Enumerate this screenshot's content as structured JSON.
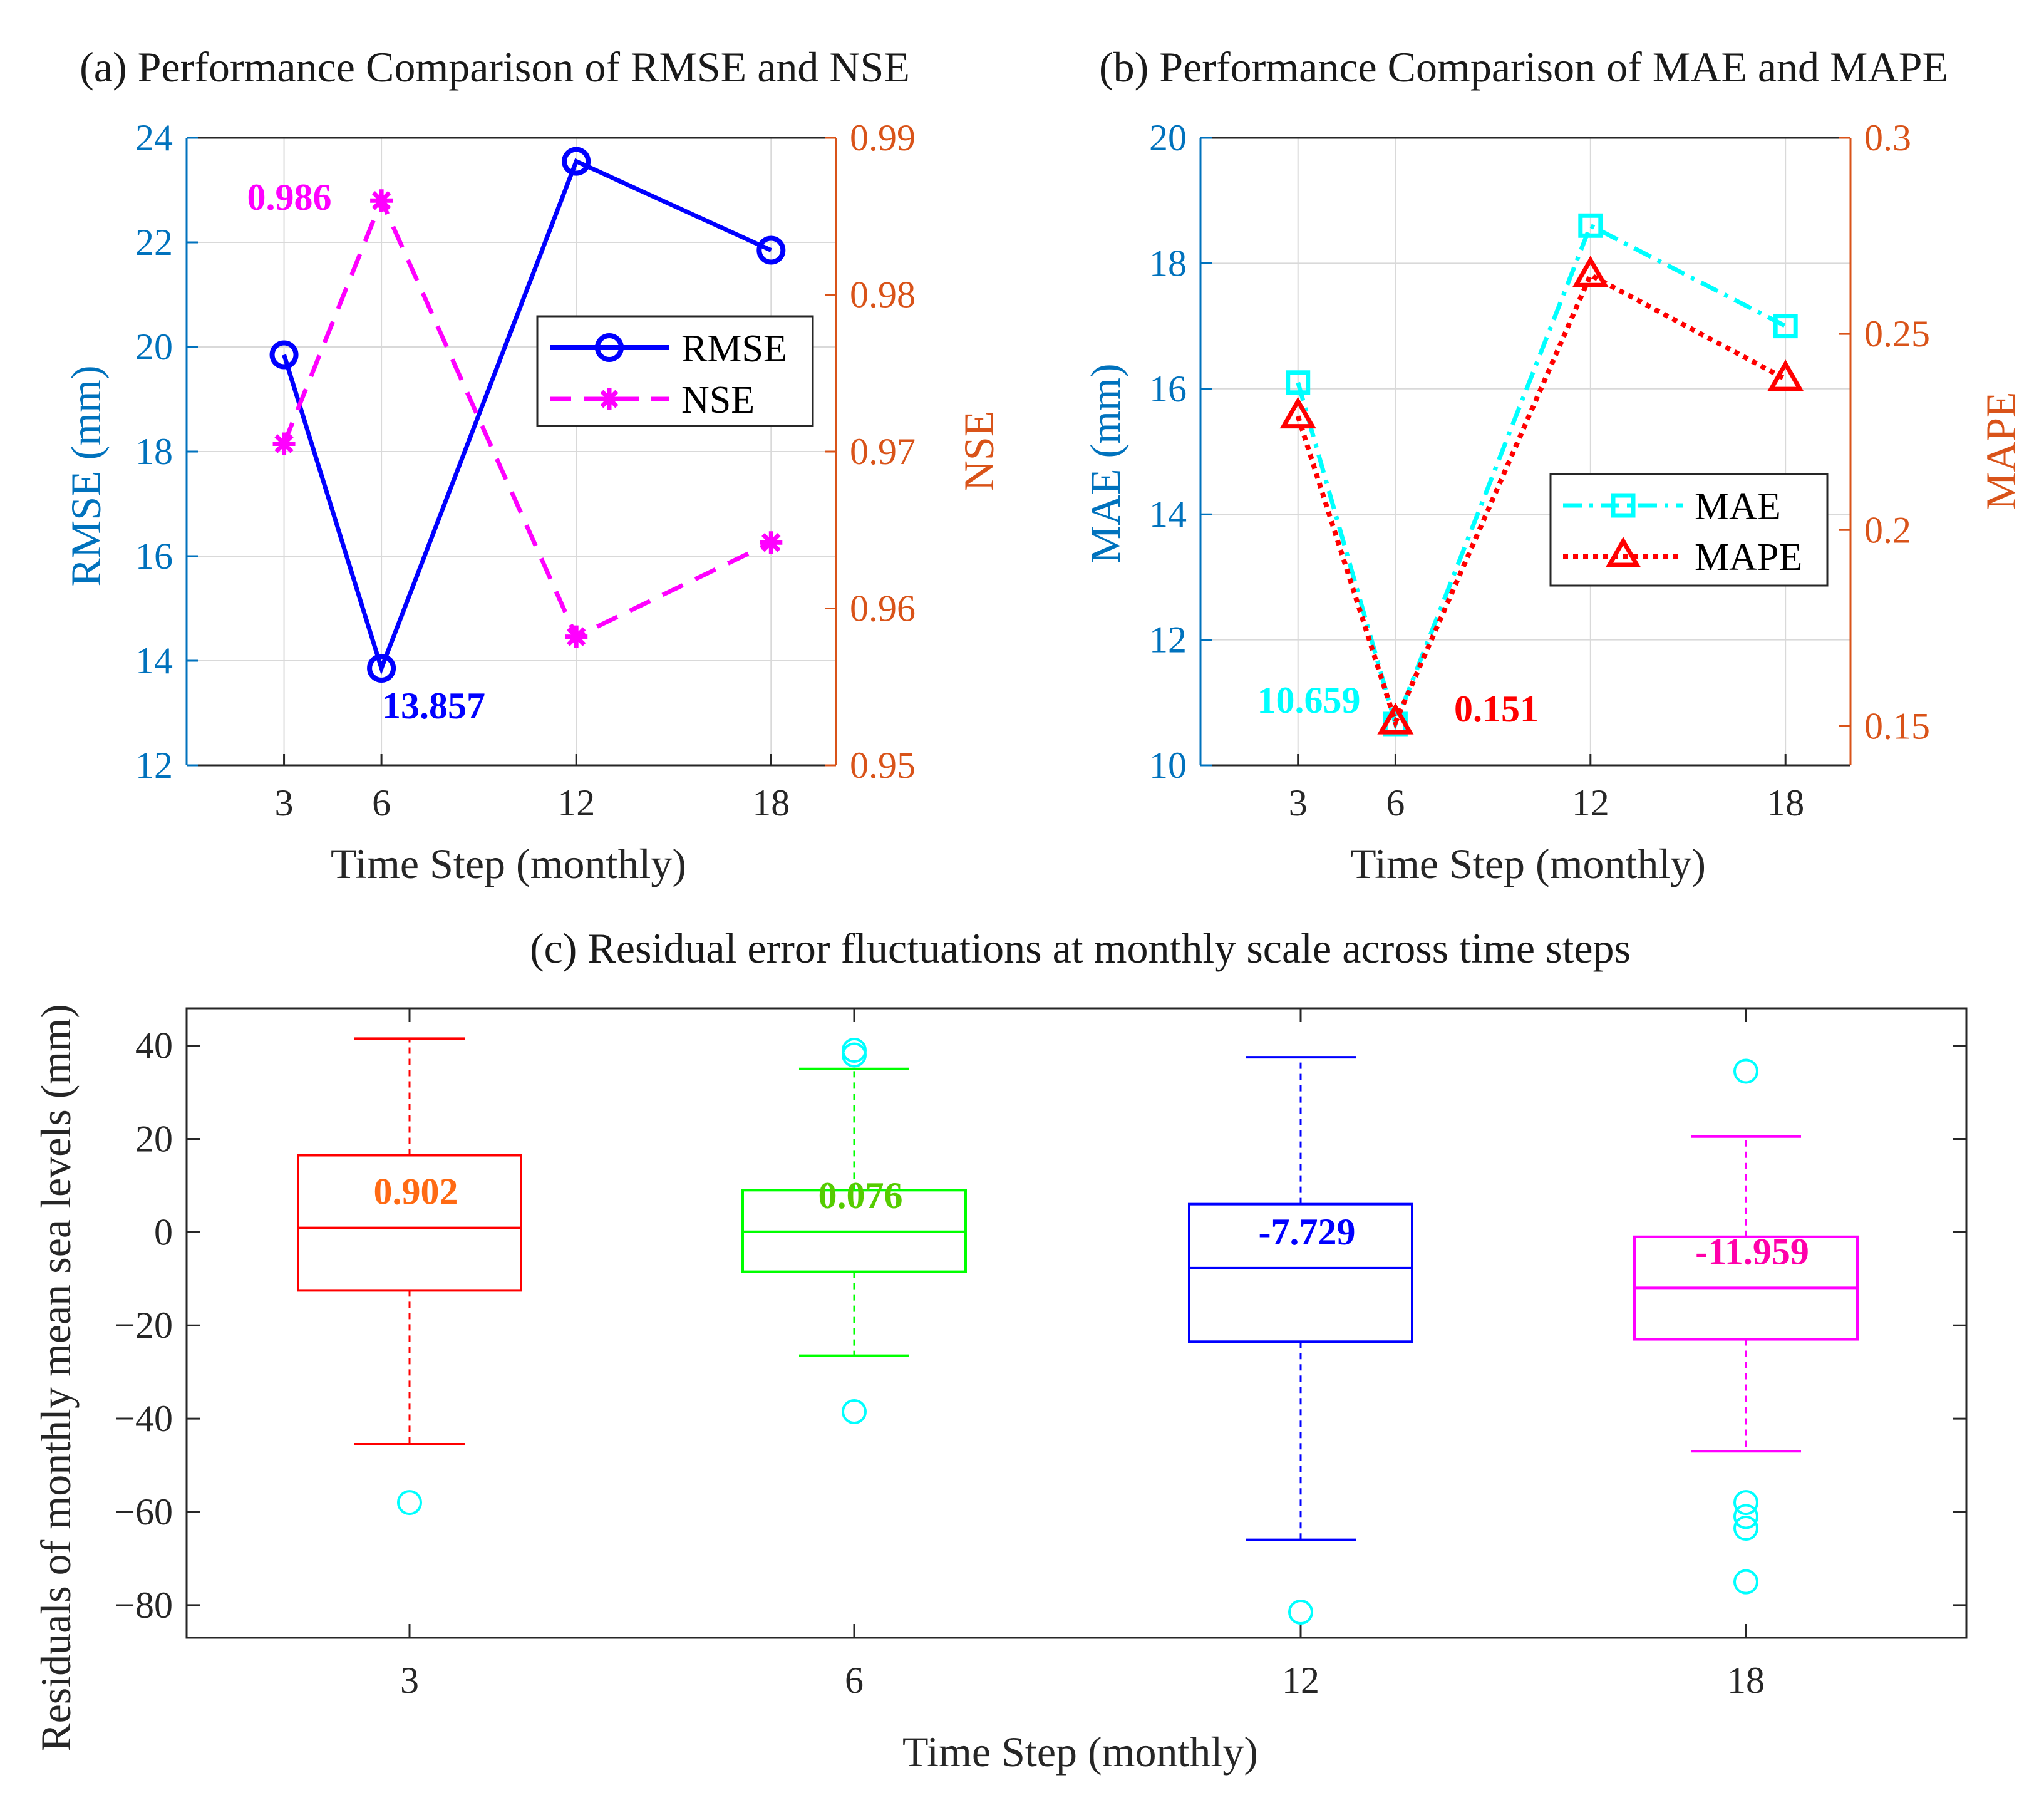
{
  "colors": {
    "axis_left": "#0072bd",
    "axis_right": "#d95319",
    "rmse": "#0000ff",
    "nse": "#ff00ff",
    "mae": "#00ffff",
    "mape": "#ff0000",
    "outlier": "#00ffff",
    "box3": "#ff0000",
    "box6": "#00ff00",
    "box12": "#0000ff",
    "box18": "#ff00ff",
    "median3": "#ff6a13",
    "median6": "#55cc00",
    "median12": "#0000ff",
    "median18": "#ff00aa"
  },
  "chart_data": [
    {
      "id": "a",
      "type": "line",
      "title": "(a) Performance Comparison of RMSE and NSE",
      "xlabel": "Time Step (monthly)",
      "ylabel_left": "RMSE (mm)",
      "ylabel_right": "NSE",
      "x": [
        3,
        6,
        12,
        18
      ],
      "x_tick_labels": [
        "3",
        "6",
        "12",
        "18"
      ],
      "xlim": [
        0,
        20
      ],
      "ylim_left": [
        12,
        24
      ],
      "y_ticks_left": [
        "12",
        "14",
        "16",
        "18",
        "20",
        "22",
        "24"
      ],
      "ylim_right": [
        0.95,
        0.99
      ],
      "y_ticks_right": [
        "0.95",
        "0.96",
        "0.97",
        "0.98",
        "0.99"
      ],
      "grid": true,
      "legend": {
        "position": "right-middle",
        "entries": [
          "RMSE",
          "NSE"
        ]
      },
      "series": [
        {
          "name": "RMSE",
          "axis": "left",
          "marker": "circle",
          "line": "solid",
          "values": [
            19.85,
            13.857,
            23.55,
            21.85
          ]
        },
        {
          "name": "NSE",
          "axis": "right",
          "marker": "star",
          "line": "dashed",
          "values": [
            0.9705,
            0.986,
            0.9582,
            0.9642
          ]
        }
      ],
      "annotations": [
        {
          "text": "0.986",
          "series": "NSE",
          "x": 6
        },
        {
          "text": "13.857",
          "series": "RMSE",
          "x": 6
        }
      ]
    },
    {
      "id": "b",
      "type": "line",
      "title": "(b) Performance Comparison of MAE and MAPE",
      "xlabel": "Time Step (monthly)",
      "ylabel_left": "MAE (mm)",
      "ylabel_right": "MAPE",
      "x": [
        3,
        6,
        12,
        18
      ],
      "x_tick_labels": [
        "3",
        "6",
        "12",
        "18"
      ],
      "xlim": [
        0,
        20
      ],
      "ylim_left": [
        10,
        20
      ],
      "y_ticks_left": [
        "10",
        "12",
        "14",
        "16",
        "18",
        "20"
      ],
      "ylim_right": [
        0.14,
        0.3
      ],
      "y_ticks_right": [
        "0.15",
        "0.2",
        "0.25",
        "0.3"
      ],
      "grid": true,
      "legend": {
        "position": "right-middle",
        "entries": [
          "MAE",
          "MAPE"
        ]
      },
      "series": [
        {
          "name": "MAE",
          "axis": "left",
          "marker": "square",
          "line": "dash-dot",
          "values": [
            16.1,
            10.659,
            18.6,
            17.0
          ]
        },
        {
          "name": "MAPE",
          "axis": "right",
          "marker": "triangle",
          "line": "dotted",
          "values": [
            0.229,
            0.151,
            0.265,
            0.2385
          ]
        }
      ],
      "annotations": [
        {
          "text": "10.659",
          "series": "MAE",
          "x": 6
        },
        {
          "text": "0.151",
          "series": "MAPE",
          "x": 6
        }
      ]
    },
    {
      "id": "c",
      "type": "box",
      "title": "(c) Residual error fluctuations at monthly scale across time steps",
      "xlabel": "Time Step (monthly)",
      "ylabel": "Residuals of monthly mean sea levels (mm)",
      "categories": [
        "3",
        "6",
        "12",
        "18"
      ],
      "ylim": [
        -87,
        48
      ],
      "y_ticks": [
        "−80",
        "−60",
        "−40",
        "−20",
        "0",
        "20",
        "40"
      ],
      "y_tick_values": [
        -80,
        -60,
        -40,
        -20,
        0,
        20,
        40
      ],
      "grid": false,
      "boxes": [
        {
          "category": "3",
          "whisker_low": -45.5,
          "q1": -12.5,
          "median": 0.902,
          "q3": 16.5,
          "whisker_high": 41.5,
          "outliers": [
            -58
          ],
          "median_label": "0.902"
        },
        {
          "category": "6",
          "whisker_low": -26.5,
          "q1": -8.5,
          "median": 0.076,
          "q3": 9.0,
          "whisker_high": 35.0,
          "outliers": [
            39.0,
            38.0,
            -38.5
          ],
          "median_label": "0.076"
        },
        {
          "category": "12",
          "whisker_low": -66.0,
          "q1": -23.5,
          "median": -7.729,
          "q3": 6.0,
          "whisker_high": 37.5,
          "outliers": [
            -81.5
          ],
          "median_label": "-7.729"
        },
        {
          "category": "18",
          "whisker_low": -47.0,
          "q1": -23.0,
          "median": -11.959,
          "q3": -1.0,
          "whisker_high": 20.5,
          "outliers": [
            34.5,
            -58.0,
            -61.0,
            -63.5,
            -75.0
          ],
          "median_label": "-11.959"
        }
      ]
    }
  ]
}
